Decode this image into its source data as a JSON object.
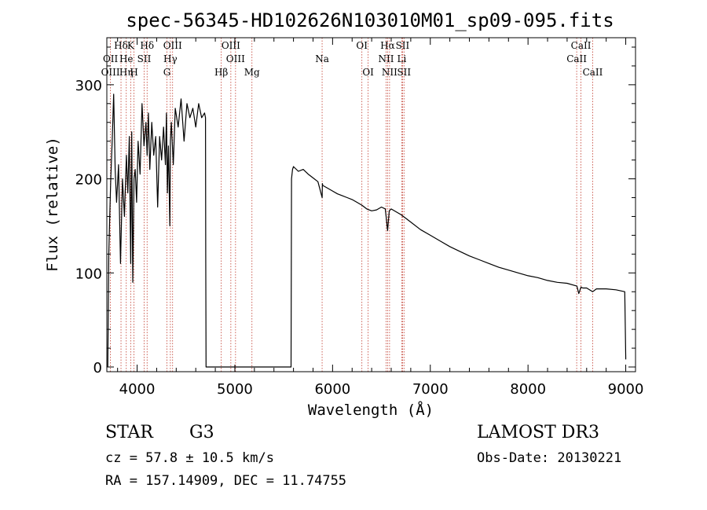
{
  "title": "spec-56345-HD102626N103010M01_sp09-095.fits",
  "info": {
    "class": "STAR",
    "subclass": "G3",
    "survey": "LAMOST DR3",
    "cz": "cz = 57.8 ± 10.5 km/s",
    "obs_date": "Obs-Date: 20130221",
    "radec": "RA = 157.14909, DEC =  11.74755"
  },
  "chart_data": {
    "type": "line",
    "title": "spec-56345-HD102626N103010M01_sp09-095.fits",
    "xlabel": "Wavelength (Å)",
    "ylabel": "Flux (relative)",
    "xlim": [
      3690,
      9100
    ],
    "ylim": [
      -5,
      350
    ],
    "xticks": [
      4000,
      5000,
      6000,
      7000,
      8000,
      9000
    ],
    "yticks": [
      0,
      100,
      200,
      300
    ],
    "series": [
      {
        "name": "flux",
        "x": [
          3700,
          3710,
          3720,
          3730,
          3745,
          3760,
          3775,
          3790,
          3810,
          3830,
          3850,
          3870,
          3890,
          3905,
          3920,
          3934,
          3945,
          3955,
          3968,
          3980,
          3995,
          4010,
          4030,
          4050,
          4070,
          4090,
          4102,
          4115,
          4130,
          4150,
          4170,
          4190,
          4210,
          4230,
          4250,
          4270,
          4290,
          4300,
          4310,
          4320,
          4335,
          4340,
          4350,
          4370,
          4390,
          4420,
          4450,
          4480,
          4510,
          4540,
          4570,
          4600,
          4630,
          4660,
          4690,
          4700,
          4702,
          4705,
          5575,
          5580,
          5590,
          5600,
          5650,
          5700,
          5750,
          5800,
          5850,
          5893,
          5896,
          5900,
          5950,
          6000,
          6050,
          6100,
          6150,
          6200,
          6250,
          6300,
          6350,
          6400,
          6450,
          6500,
          6540,
          6563,
          6580,
          6600,
          6650,
          6700,
          6750,
          6800,
          6900,
          7000,
          7100,
          7200,
          7300,
          7400,
          7500,
          7600,
          7700,
          7800,
          7900,
          8000,
          8100,
          8200,
          8300,
          8400,
          8500,
          8520,
          8542,
          8560,
          8600,
          8662,
          8700,
          8800,
          8900,
          8990,
          9000
        ],
        "values": [
          0,
          120,
          160,
          200,
          240,
          290,
          210,
          175,
          215,
          110,
          200,
          160,
          225,
          185,
          245,
          110,
          250,
          90,
          200,
          210,
          175,
          240,
          205,
          280,
          235,
          260,
          225,
          270,
          210,
          260,
          225,
          245,
          170,
          245,
          220,
          255,
          215,
          270,
          185,
          235,
          150,
          240,
          260,
          215,
          275,
          255,
          285,
          240,
          280,
          265,
          275,
          255,
          280,
          265,
          270,
          265,
          120,
          0,
          0,
          200,
          210,
          213,
          208,
          210,
          205,
          201,
          197,
          180,
          195,
          193,
          190,
          187,
          184,
          182,
          180,
          178,
          175,
          172,
          168,
          166,
          167,
          170,
          168,
          145,
          166,
          168,
          165,
          162,
          158,
          154,
          146,
          140,
          134,
          128,
          123,
          118,
          114,
          110,
          106,
          103,
          100,
          97,
          95,
          92,
          90,
          89,
          86,
          78,
          85,
          84,
          84,
          80,
          83,
          83,
          82,
          80,
          8
        ]
      }
    ],
    "lines": [
      {
        "label": "Hδ",
        "wave": 4102,
        "row": 1
      },
      {
        "label": "K",
        "wave": 3934,
        "row": 1
      },
      {
        "label": "Hδ",
        "wave": 3835,
        "row": 1
      },
      {
        "label": "OIII",
        "wave": 4363,
        "row": 1
      },
      {
        "label": "OIII",
        "wave": 4959,
        "row": 1
      },
      {
        "label": "OI",
        "wave": 6300,
        "row": 1
      },
      {
        "label": "Hα",
        "wave": 6563,
        "row": 1
      },
      {
        "label": "SII",
        "wave": 6716,
        "row": 1
      },
      {
        "label": "CaII",
        "wave": 8542,
        "row": 1
      },
      {
        "label": "OII",
        "wave": 3727,
        "row": 2
      },
      {
        "label": "He",
        "wave": 3889,
        "row": 2
      },
      {
        "label": "SII",
        "wave": 4072,
        "row": 2
      },
      {
        "label": "Hγ",
        "wave": 4340,
        "row": 2
      },
      {
        "label": "OIII",
        "wave": 5007,
        "row": 2
      },
      {
        "label": "Na",
        "wave": 5893,
        "row": 2
      },
      {
        "label": "NII",
        "wave": 6548,
        "row": 2
      },
      {
        "label": "Li",
        "wave": 6708,
        "row": 2
      },
      {
        "label": "CaII",
        "wave": 8498,
        "row": 2
      },
      {
        "label": "OIII",
        "wave": 3727,
        "row": 3
      },
      {
        "label": "Hη",
        "wave": 3889,
        "row": 3
      },
      {
        "label": "H",
        "wave": 3968,
        "row": 3
      },
      {
        "label": "G",
        "wave": 4305,
        "row": 3
      },
      {
        "label": "Hβ",
        "wave": 4861,
        "row": 3
      },
      {
        "label": "Mg",
        "wave": 5175,
        "row": 3
      },
      {
        "label": "OI",
        "wave": 6364,
        "row": 3
      },
      {
        "label": "NII",
        "wave": 6583,
        "row": 3
      },
      {
        "label": "SII",
        "wave": 6731,
        "row": 3
      },
      {
        "label": "CaII",
        "wave": 8662,
        "row": 3
      }
    ]
  }
}
